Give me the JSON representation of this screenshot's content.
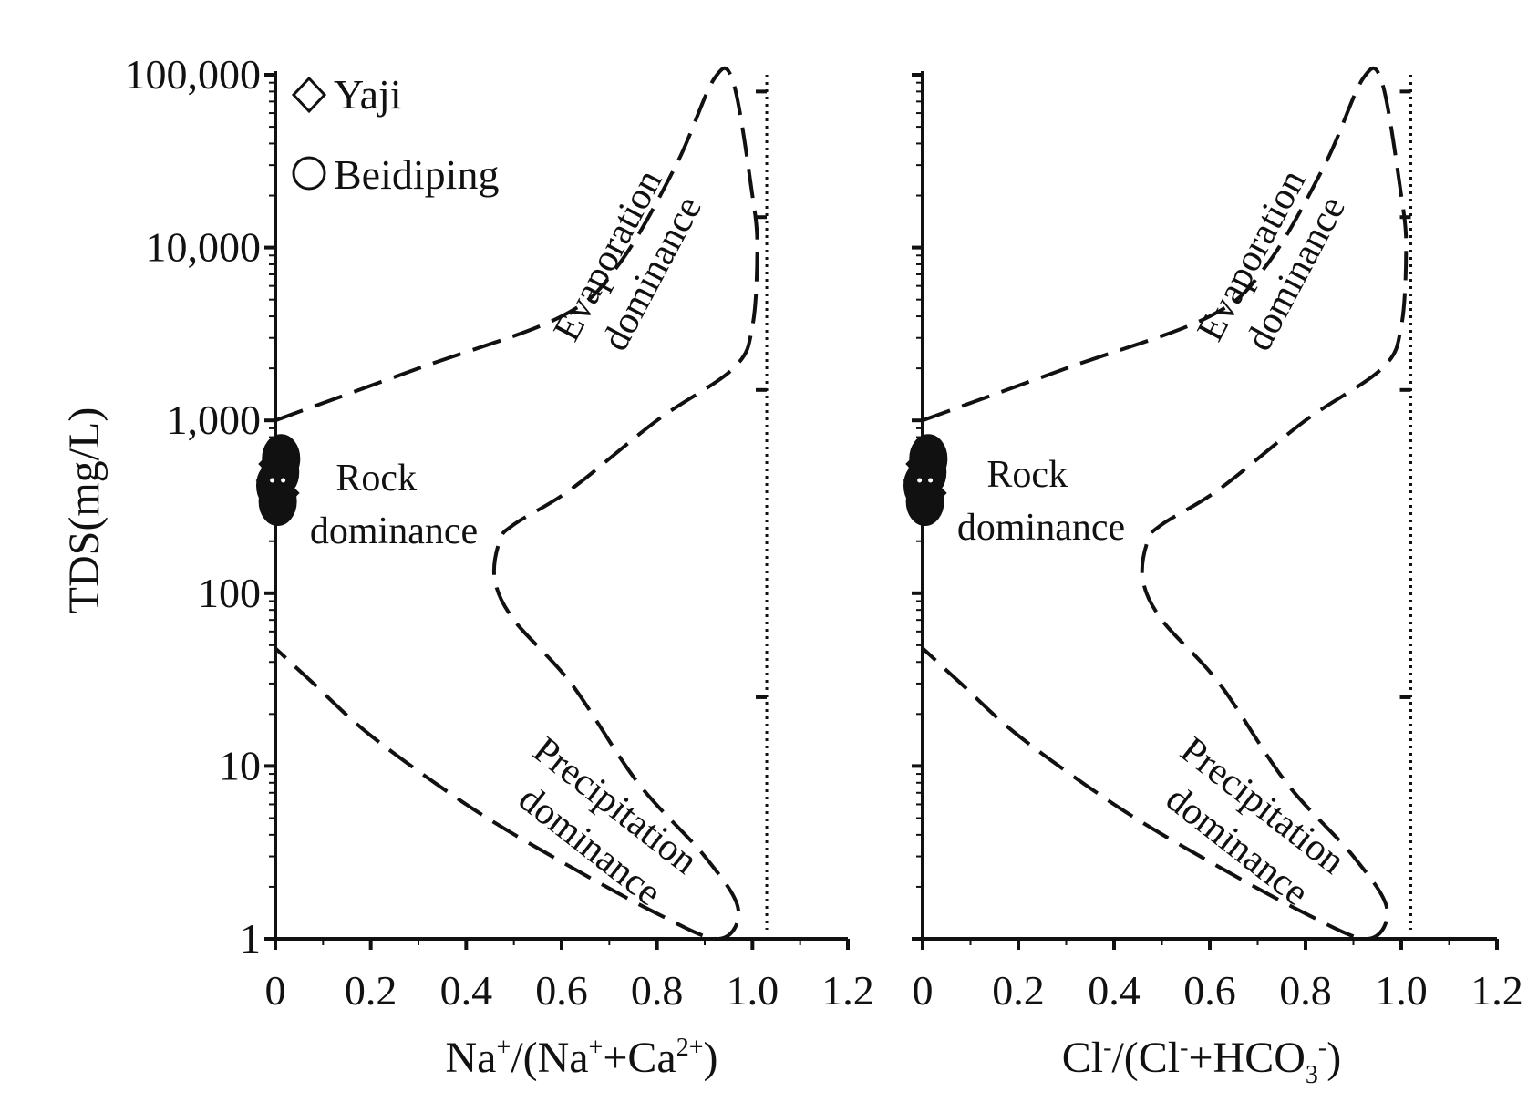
{
  "chart_data": [
    {
      "type": "scatter",
      "xlabel": {
        "base": "Na",
        "sup1": "+",
        "mid": "/(Na",
        "sup2": "+",
        "plus": "+Ca",
        "sup3": "2+",
        "end": ")"
      },
      "ylabel": "TDS(mg/L)",
      "x_ticks": [
        "0",
        "0.2",
        "0.4",
        "0.6",
        "0.8",
        "1.0",
        "1.2"
      ],
      "y_ticks": [
        "1",
        "10",
        "100",
        "1,000",
        "10,000",
        "100,000"
      ],
      "xlim": [
        0,
        1.2
      ],
      "ylim": [
        1,
        100000
      ],
      "y_scale": "log",
      "legend": {
        "placement": "top-left",
        "items": [
          {
            "marker": "diamond",
            "label": "Yaji"
          },
          {
            "marker": "circle",
            "label": "Beidiping"
          }
        ]
      },
      "regions": {
        "evaporation": [
          "Evaporation",
          "dominance"
        ],
        "rock": [
          "Rock",
          "dominance"
        ],
        "precipitation": [
          "Precipitation",
          "dominance"
        ]
      },
      "series": [
        {
          "name": "Yaji",
          "marker": "diamond",
          "points": [
            {
              "x": 0.0,
              "y": 450
            },
            {
              "x": 0.01,
              "y": 380
            },
            {
              "x": 0.005,
              "y": 560
            }
          ]
        },
        {
          "name": "Beidiping",
          "marker": "circle",
          "points": [
            {
              "x": 0.0,
              "y": 420
            },
            {
              "x": 0.01,
              "y": 500
            },
            {
              "x": 0.005,
              "y": 340
            },
            {
              "x": 0.012,
              "y": 600
            }
          ]
        }
      ],
      "boundary_upper": [
        [
          0.0,
          1000
        ],
        [
          0.3,
          2000
        ],
        [
          0.6,
          4000
        ],
        [
          0.72,
          8000
        ],
        [
          0.84,
          30000
        ],
        [
          0.92,
          95000
        ],
        [
          0.96,
          90000
        ],
        [
          1.0,
          20000
        ],
        [
          1.01,
          10000
        ],
        [
          1.0,
          3500
        ],
        [
          0.96,
          2000
        ],
        [
          0.8,
          1000
        ],
        [
          0.62,
          400
        ],
        [
          0.5,
          250
        ],
        [
          0.47,
          200
        ],
        [
          0.46,
          120
        ],
        [
          0.5,
          70
        ],
        [
          0.62,
          30
        ],
        [
          0.76,
          8
        ],
        [
          0.9,
          3
        ],
        [
          0.97,
          1.5
        ],
        [
          0.93,
          1.0
        ],
        [
          0.8,
          1.4
        ],
        [
          0.58,
          3
        ],
        [
          0.4,
          6
        ],
        [
          0.2,
          15
        ],
        [
          0.08,
          30
        ],
        [
          0.0,
          48
        ]
      ],
      "reference_line_x": 1.03,
      "ref_ticks_y": [
        80000,
        15000,
        1500,
        25
      ]
    },
    {
      "type": "scatter",
      "xlabel": {
        "base": "Cl",
        "sup1": "-",
        "mid": "/(Cl",
        "sup2": "-",
        "plus": "+HCO",
        "sub": "3",
        "sup3": "-",
        "end": ")"
      },
      "ylabel": "",
      "x_ticks": [
        "0",
        "0.2",
        "0.4",
        "0.6",
        "0.8",
        "1.0",
        "1.2"
      ],
      "xlim": [
        0,
        1.2
      ],
      "ylim": [
        1,
        100000
      ],
      "y_scale": "log",
      "regions": {
        "evaporation": [
          "Evaporation",
          "dominance"
        ],
        "rock": [
          "Rock",
          "dominance"
        ],
        "precipitation": [
          "Precipitation",
          "dominance"
        ]
      },
      "series": [
        {
          "name": "Yaji",
          "marker": "diamond",
          "points": [
            {
              "x": 0.0,
              "y": 450
            },
            {
              "x": 0.01,
              "y": 380
            },
            {
              "x": 0.005,
              "y": 560
            }
          ]
        },
        {
          "name": "Beidiping",
          "marker": "circle",
          "points": [
            {
              "x": 0.0,
              "y": 420
            },
            {
              "x": 0.01,
              "y": 500
            },
            {
              "x": 0.005,
              "y": 340
            },
            {
              "x": 0.012,
              "y": 600
            }
          ]
        }
      ],
      "reference_line_x": 1.02,
      "ref_ticks_y": [
        80000,
        15000,
        1500,
        25
      ]
    }
  ]
}
